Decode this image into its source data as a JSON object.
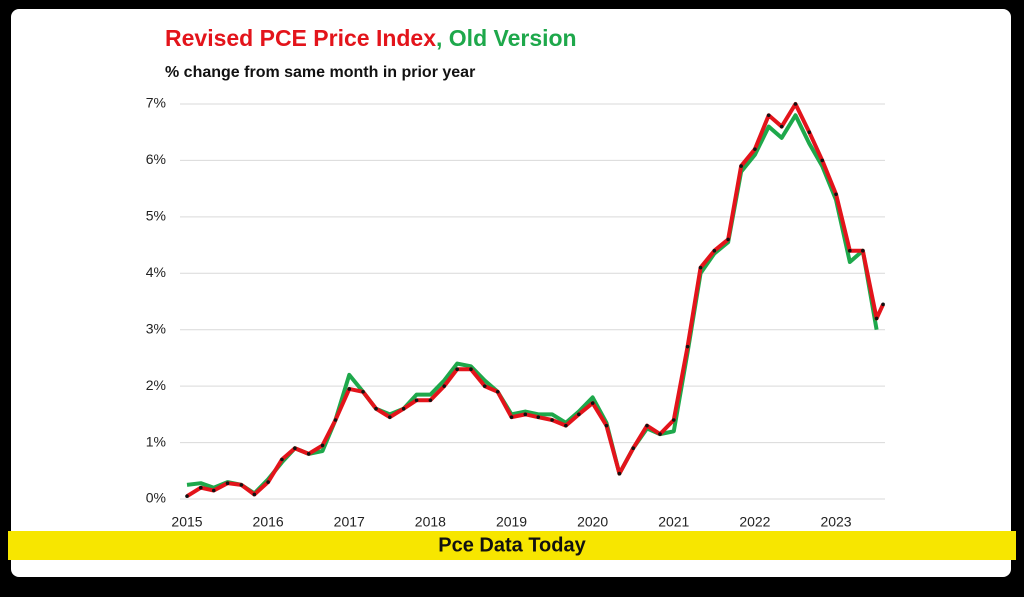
{
  "chart_data": {
    "type": "line",
    "title_parts": [
      {
        "text": "Revised PCE Price Index",
        "color": "#e3141b"
      },
      {
        "text": ", Old Version",
        "color": "#1ea84b"
      }
    ],
    "subtitle": "% change from same month in prior year",
    "x": [
      2015.0,
      2015.17,
      2015.33,
      2015.5,
      2015.67,
      2015.83,
      2016.0,
      2016.17,
      2016.33,
      2016.5,
      2016.67,
      2016.83,
      2017.0,
      2017.17,
      2017.33,
      2017.5,
      2017.67,
      2017.83,
      2018.0,
      2018.17,
      2018.33,
      2018.5,
      2018.67,
      2018.83,
      2019.0,
      2019.17,
      2019.33,
      2019.5,
      2019.67,
      2019.83,
      2020.0,
      2020.17,
      2020.33,
      2020.5,
      2020.67,
      2020.83,
      2021.0,
      2021.17,
      2021.33,
      2021.5,
      2021.67,
      2021.83,
      2022.0,
      2022.17,
      2022.33,
      2022.5,
      2022.67,
      2022.83,
      2023.0,
      2023.17,
      2023.33,
      2023.5,
      2023.58
    ],
    "series": [
      {
        "name": "Old Version",
        "color": "#1ea84b",
        "values": [
          0.25,
          0.28,
          0.2,
          0.3,
          0.25,
          0.1,
          0.35,
          0.65,
          0.9,
          0.8,
          0.85,
          1.4,
          2.2,
          1.9,
          1.6,
          1.5,
          1.6,
          1.85,
          1.85,
          2.1,
          2.4,
          2.35,
          2.1,
          1.9,
          1.5,
          1.55,
          1.5,
          1.5,
          1.35,
          1.55,
          1.8,
          1.35,
          0.45,
          0.9,
          1.25,
          1.15,
          1.2,
          2.6,
          4.0,
          4.35,
          4.55,
          5.8,
          6.1,
          6.6,
          6.4,
          6.8,
          6.3,
          5.9,
          5.3,
          4.2,
          4.4,
          3.0,
          null
        ],
        "dots": false
      },
      {
        "name": "Revised PCE Price Index",
        "color": "#e3141b",
        "values": [
          0.05,
          0.2,
          0.15,
          0.28,
          0.25,
          0.08,
          0.3,
          0.7,
          0.9,
          0.8,
          0.95,
          1.4,
          1.95,
          1.9,
          1.6,
          1.45,
          1.6,
          1.75,
          1.75,
          2.0,
          2.3,
          2.3,
          2.0,
          1.9,
          1.45,
          1.5,
          1.45,
          1.4,
          1.3,
          1.5,
          1.7,
          1.3,
          0.45,
          0.9,
          1.3,
          1.15,
          1.4,
          2.7,
          4.1,
          4.4,
          4.6,
          5.9,
          6.2,
          6.8,
          6.6,
          7.0,
          6.5,
          6.0,
          5.4,
          4.4,
          4.4,
          3.2,
          3.45
        ],
        "dots": true
      }
    ],
    "xlim": [
      2015,
      2023.85
    ],
    "xticks": [
      2015,
      2016,
      2017,
      2018,
      2019,
      2020,
      2021,
      2022,
      2023
    ],
    "ylim": [
      0,
      7
    ],
    "yticks": [
      {
        "value": 0,
        "label": "0%"
      },
      {
        "value": 1,
        "label": "1%"
      },
      {
        "value": 2,
        "label": "2%"
      },
      {
        "value": 3,
        "label": "3%"
      },
      {
        "value": 4,
        "label": "4%"
      },
      {
        "value": 5,
        "label": "5%"
      },
      {
        "value": 6,
        "label": "6%"
      },
      {
        "value": 7,
        "label": "7%"
      }
    ],
    "grid": true
  },
  "banner": "Pce Data Today"
}
